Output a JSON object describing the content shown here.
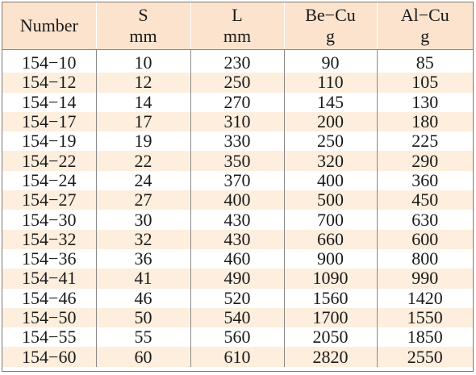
{
  "table": {
    "headers": [
      {
        "line1": "Number",
        "line2": ""
      },
      {
        "line1": "S",
        "line2": "mm"
      },
      {
        "line1": "L",
        "line2": "mm"
      },
      {
        "line1": "Be−Cu",
        "line2": "g"
      },
      {
        "line1": "Al−Cu",
        "line2": "g"
      }
    ],
    "rows": [
      [
        "154−10",
        "10",
        "230",
        "90",
        "85"
      ],
      [
        "154−12",
        "12",
        "250",
        "110",
        "105"
      ],
      [
        "154−14",
        "14",
        "270",
        "145",
        "130"
      ],
      [
        "154−17",
        "17",
        "310",
        "200",
        "180"
      ],
      [
        "154−19",
        "19",
        "330",
        "250",
        "225"
      ],
      [
        "154−22",
        "22",
        "350",
        "320",
        "290"
      ],
      [
        "154−24",
        "24",
        "370",
        "400",
        "360"
      ],
      [
        "154−27",
        "27",
        "400",
        "500",
        "450"
      ],
      [
        "154−30",
        "30",
        "430",
        "700",
        "630"
      ],
      [
        "154−32",
        "32",
        "430",
        "660",
        "600"
      ],
      [
        "154−36",
        "36",
        "460",
        "900",
        "800"
      ],
      [
        "154−41",
        "41",
        "490",
        "1090",
        "990"
      ],
      [
        "154−46",
        "46",
        "520",
        "1560",
        "1420"
      ],
      [
        "154−50",
        "50",
        "540",
        "1700",
        "1550"
      ],
      [
        "154−55",
        "55",
        "560",
        "2050",
        "1850"
      ],
      [
        "154−60",
        "60",
        "610",
        "2820",
        "2550"
      ]
    ],
    "colors": {
      "header_bg": "#fbe3cd",
      "stripe_bg": "#fdeedd"
    }
  }
}
